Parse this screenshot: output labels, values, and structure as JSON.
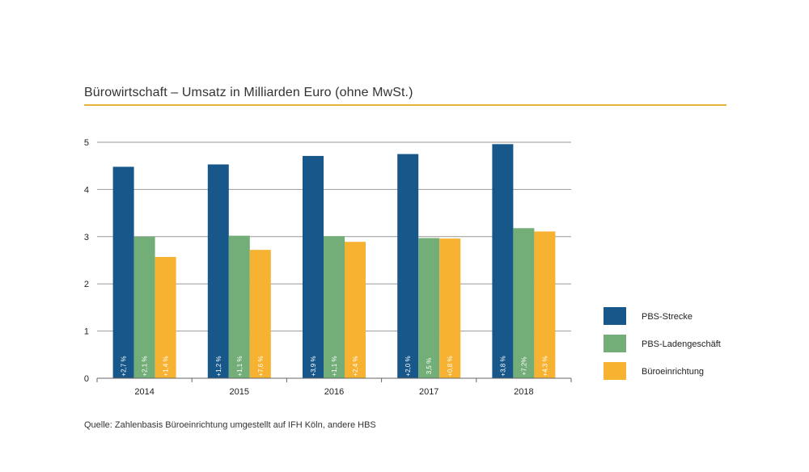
{
  "title": "Bürowirtschaft – Umsatz in Milliarden Euro (ohne MwSt.)",
  "source": "Quelle: Zahlenbasis Büroeinrichtung umgestellt auf IFH Köln, andere HBS",
  "colors": {
    "accent_rule": "#e7b43a",
    "grid": "#999999",
    "axis": "#666666"
  },
  "chart_data": {
    "type": "bar",
    "title": "Bürowirtschaft – Umsatz in Milliarden Euro (ohne MwSt.)",
    "xlabel": "",
    "ylabel": "",
    "ylim": [
      0,
      5
    ],
    "yticks": [
      "0",
      "1",
      "2",
      "3",
      "4",
      "5"
    ],
    "grid": true,
    "legend_position": "right",
    "categories": [
      "2014",
      "2015",
      "2016",
      "2017",
      "2018"
    ],
    "series": [
      {
        "name": "PBS-Strecke",
        "color": "#17578a",
        "values": [
          4.48,
          4.53,
          4.71,
          4.75,
          4.96
        ],
        "labels": [
          "+2,7 %",
          "+1,2 %",
          "+3,9 %",
          "+2,0 %",
          "+3,8 %"
        ]
      },
      {
        "name": "PBS-Ladengeschäft",
        "color": "#73ae79",
        "values": [
          3.0,
          3.02,
          3.01,
          2.97,
          3.18
        ],
        "labels": [
          "+2,1 %",
          "+1,1 %",
          "+1,1 %",
          "3,5 %",
          "+7,2%"
        ]
      },
      {
        "name": "Büroeinrichtung",
        "color": "#f7b232",
        "values": [
          2.57,
          2.72,
          2.89,
          2.96,
          3.11
        ],
        "labels": [
          "+1,4 %",
          "+7,6 %",
          "+2,4 %",
          "+0,8 %",
          "+4,3 %"
        ]
      }
    ]
  }
}
